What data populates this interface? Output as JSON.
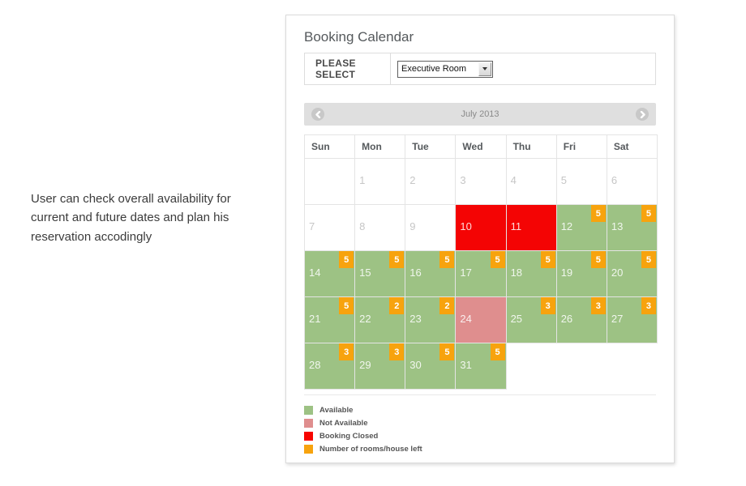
{
  "page": {
    "note": "User can check overall availability for current and future dates and plan his reservation accodingly"
  },
  "panel": {
    "title": "Booking Calendar",
    "select_label": "PLEASE SELECT",
    "room_select": {
      "value": "Executive Room"
    },
    "nav": {
      "month_title": "July 2013"
    }
  },
  "calendar": {
    "weekdays": [
      "Sun",
      "Mon",
      "Tue",
      "Wed",
      "Thu",
      "Fri",
      "Sat"
    ],
    "weeks": [
      [
        {},
        {
          "day": 1
        },
        {
          "day": 2
        },
        {
          "day": 3
        },
        {
          "day": 4
        },
        {
          "day": 5
        },
        {
          "day": 6
        }
      ],
      [
        {
          "day": 7
        },
        {
          "day": 8
        },
        {
          "day": 9
        },
        {
          "day": 10,
          "state": "closed"
        },
        {
          "day": 11,
          "state": "closed"
        },
        {
          "day": 12,
          "state": "available",
          "rooms": 5
        },
        {
          "day": 13,
          "state": "available",
          "rooms": 5
        }
      ],
      [
        {
          "day": 14,
          "state": "available",
          "rooms": 5
        },
        {
          "day": 15,
          "state": "available",
          "rooms": 5
        },
        {
          "day": 16,
          "state": "available",
          "rooms": 5
        },
        {
          "day": 17,
          "state": "available",
          "rooms": 5
        },
        {
          "day": 18,
          "state": "available",
          "rooms": 5
        },
        {
          "day": 19,
          "state": "available",
          "rooms": 5
        },
        {
          "day": 20,
          "state": "available",
          "rooms": 5
        }
      ],
      [
        {
          "day": 21,
          "state": "available",
          "rooms": 5
        },
        {
          "day": 22,
          "state": "available",
          "rooms": 2
        },
        {
          "day": 23,
          "state": "available",
          "rooms": 2
        },
        {
          "day": 24,
          "state": "unavailable"
        },
        {
          "day": 25,
          "state": "available",
          "rooms": 3
        },
        {
          "day": 26,
          "state": "available",
          "rooms": 3
        },
        {
          "day": 27,
          "state": "available",
          "rooms": 3
        }
      ],
      [
        {
          "day": 28,
          "state": "available",
          "rooms": 3
        },
        {
          "day": 29,
          "state": "available",
          "rooms": 3
        },
        {
          "day": 30,
          "state": "available",
          "rooms": 5
        },
        {
          "day": 31,
          "state": "available",
          "rooms": 5
        },
        {
          "hidden": true
        },
        {
          "hidden": true
        },
        {
          "hidden": true
        }
      ]
    ]
  },
  "legend": [
    {
      "label": "Available",
      "color": "#9dc284"
    },
    {
      "label": "Not Available",
      "color": "#df8e8e"
    },
    {
      "label": "Booking Closed",
      "color": "#f70400"
    },
    {
      "label": "Number of rooms/house left",
      "color": "#f7a30e"
    }
  ],
  "colors": {
    "available": "#9dc284",
    "unavailable": "#df8e8e",
    "closed": "#f40404",
    "badge": "#f7a30e"
  }
}
